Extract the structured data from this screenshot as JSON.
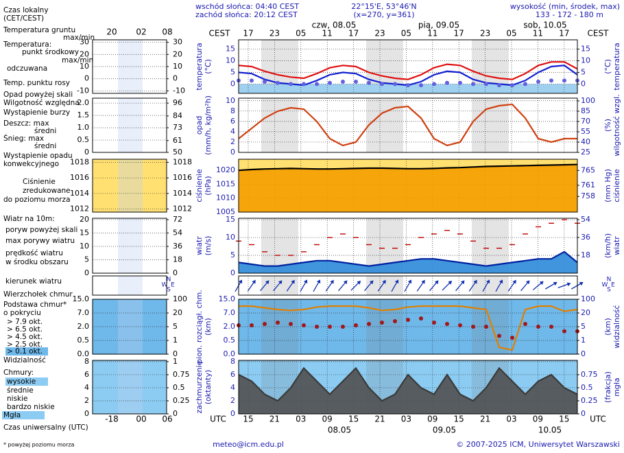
{
  "header": {
    "sunrise": "wschód słońca: 04:40 CEST",
    "sunset": "zachód słońca: 20:12 CEST",
    "coords": "22°15'E, 53°46'N",
    "gridpoint": "(x=270, y=361)",
    "elev_title": "wysokość (min, środek, max)",
    "elev": "133 - 172 - 180 m"
  },
  "dates_top": [
    "czw, 08.05",
    "pią, 09.05",
    "sob, 10.05"
  ],
  "tz_top": "CEST",
  "tz_bottom": "UTC",
  "hours_top": [
    "17",
    "23",
    "05",
    "11",
    "17",
    "23",
    "05",
    "11",
    "17",
    "23",
    "05",
    "11",
    "17"
  ],
  "hours_bottom": [
    "15",
    "21",
    "03",
    "09",
    "15",
    "21",
    "03",
    "09",
    "15",
    "21",
    "03",
    "09",
    "15"
  ],
  "dates_bottom": [
    "08.05",
    "09.05",
    "10.05"
  ],
  "compass": [
    "N",
    "W",
    "E",
    "S"
  ],
  "legend_hours_top": [
    "20",
    "02",
    "08"
  ],
  "legend_hours_bottom": [
    "-18",
    "00",
    "06"
  ],
  "legend": [
    "Czas lokalny",
    "(CET/CEST)",
    "Temperatura gruntu",
    "max/min",
    "Temperatura:",
    "punkt środkowy",
    "max/min",
    "odczuwana",
    "Temp. punktu rosy",
    "Opad powyżej skali",
    "Wilgotność względna",
    "Wystąpienie burzy",
    "Deszcz: max",
    "średni",
    "Śnieg: max",
    "średni",
    "Wystąpienie opadu",
    "konwekcyjnego",
    "Ciśnienie",
    "zredukowane",
    "do poziomu morza",
    "Wiatr na 10m:",
    "poryw powyżej skali",
    "max porywy wiatru",
    "prędkość wiatru",
    "w środku obszaru",
    "kierunek wiatru",
    "Wierzchołek chmur",
    "Podstawa chmur*",
    "o pokryciu",
    "> 7.9 okt.",
    "> 6.5 okt.",
    "> 4.5 okt.",
    "> 2.5 okt.",
    "> 0.1 okt.",
    "Widzialność",
    "Chmury:",
    "wysokie",
    "średnie",
    "niskie",
    "bardzo niskie",
    "Mgła",
    "Czas uniwersalny (UTC)"
  ],
  "legend_axes": [
    {
      "ylim": [
        -12,
        32
      ],
      "yticks": [
        -10,
        0,
        10,
        20,
        30
      ],
      "y2lim": [
        -12,
        32
      ],
      "y2ticks": [
        -10,
        0,
        10,
        20,
        30
      ]
    },
    {
      "ylim": [
        0,
        2.2
      ],
      "yticks": [
        0,
        {
          "value": 0.5,
          "label": "0.5"
        },
        {
          "value": 1,
          "label": "1.0"
        },
        {
          "value": 1.5,
          "label": "1.5"
        },
        {
          "value": 2,
          "label": "2.0"
        }
      ],
      "y2lim": [
        50,
        100.6
      ],
      "y2ticks": [
        50,
        61,
        73,
        84,
        96
      ]
    },
    {
      "ylim": [
        1011.6,
        1018.4
      ],
      "yticks": [
        1012,
        1014,
        1016,
        1018
      ],
      "y2lim": [
        1011.6,
        1018.4
      ],
      "y2ticks": [
        1012,
        1014,
        1016,
        1018
      ]
    },
    {
      "ylim": [
        0,
        20.5
      ],
      "yticks": [
        0,
        5,
        10,
        15,
        20
      ],
      "y2lim": [
        0,
        73.8
      ],
      "y2ticks": [
        0,
        18,
        36,
        54,
        72
      ]
    },
    {
      "yscale": "tick-spaced",
      "ylim": [
        0,
        15
      ],
      "yticks": [
        {
          "value": 0,
          "label": "0.0"
        },
        0.5,
        {
          "value": 2,
          "label": "2.0"
        },
        {
          "value": 7,
          "label": "7.0"
        },
        {
          "value": 15,
          "label": "15.0"
        }
      ],
      "y2lim": [
        0,
        100
      ],
      "y2ticks": [
        0,
        1,
        5,
        20,
        100
      ]
    },
    {
      "ylim": [
        0,
        8.2
      ],
      "yticks": [
        0,
        2,
        4,
        6,
        8
      ],
      "y2lim": [
        0,
        1.025
      ],
      "y2ticks": [
        0,
        0.25,
        0.5,
        0.75,
        1
      ]
    }
  ],
  "footer": {
    "email": "meteo@icm.edu.pl",
    "copyright": "© 2007-2025 ICM, Uniwersytet Warszawski",
    "note": "* powyżej poziomu morza"
  },
  "chart_data": [
    {
      "type": "line",
      "ylabel": [
        "temperatura",
        "(°C)"
      ],
      "y2label": [
        "(°C)",
        "temperatura"
      ],
      "ylim": [
        -4,
        19
      ],
      "yticks": [
        0,
        5,
        10,
        15
      ],
      "y2lim": [
        -4,
        19
      ],
      "y2ticks": [
        0,
        5,
        10,
        15
      ],
      "grid": true,
      "series": [
        {
          "color": "#e01010",
          "values": [
            8,
            7.5,
            5.5,
            4,
            3,
            2.5,
            4.5,
            7,
            8,
            7.5,
            5,
            3.5,
            2.5,
            2,
            4,
            7,
            8.5,
            8,
            5.5,
            3.5,
            2.5,
            2,
            4.5,
            8,
            9.5,
            9.5,
            6.5
          ]
        },
        {
          "color": "#1020d0",
          "values": [
            5,
            4.5,
            2,
            0.5,
            0,
            -0.5,
            1.5,
            4,
            5,
            4.5,
            2,
            0.5,
            0,
            -0.5,
            1,
            4,
            5.5,
            5,
            2,
            0.5,
            0,
            -0.5,
            1.5,
            5,
            7.5,
            8,
            4
          ]
        },
        {
          "color": "#6060e0",
          "style": "dots",
          "values": [
            1.5,
            1.5,
            1,
            0.5,
            0,
            0,
            0,
            0.5,
            1,
            1,
            0.5,
            0,
            0,
            -0.5,
            -0.5,
            0,
            0.5,
            0.5,
            0,
            0,
            -0.5,
            -0.5,
            0,
            1,
            1.5,
            1.5,
            1.5
          ]
        }
      ]
    },
    {
      "type": "line",
      "ylabel": [
        "opad",
        "(mm/h, kg/m²h)"
      ],
      "y2label": [
        "(%)",
        "wilgotność wzgl."
      ],
      "ylim": [
        0,
        10.5
      ],
      "yticks": [
        0,
        2,
        4,
        6,
        8,
        10
      ],
      "y2lim": [
        25,
        104
      ],
      "y2ticks": [
        25,
        40,
        55,
        70,
        85,
        100
      ],
      "grid": true,
      "series": [
        {
          "color": "#d04010",
          "axis": "y2",
          "values": [
            45,
            60,
            75,
            85,
            90,
            88,
            70,
            45,
            35,
            40,
            65,
            82,
            90,
            92,
            75,
            45,
            35,
            40,
            70,
            88,
            93,
            95,
            75,
            45,
            40,
            45,
            45
          ]
        }
      ]
    },
    {
      "type": "area",
      "ylabel": [
        "ciśnienie",
        "(hPa)"
      ],
      "y2label": [
        "(mm Hg)",
        "ciśnienie"
      ],
      "ylim": [
        1005,
        1024
      ],
      "yticks": [
        1005,
        1010,
        1015,
        1020
      ],
      "y2lim": [
        753.8,
        768
      ],
      "y2ticks": [
        758,
        761,
        765
      ],
      "grid": true,
      "series": [
        {
          "color": "#000000",
          "fill": "#f5a000",
          "values": [
            1020,
            1020.3,
            1020.5,
            1020.6,
            1020.7,
            1020.6,
            1020.5,
            1020.5,
            1020.6,
            1020.7,
            1020.8,
            1020.8,
            1020.7,
            1020.6,
            1020.6,
            1020.7,
            1020.9,
            1021,
            1021.2,
            1021.4,
            1021.5,
            1021.6,
            1021.7,
            1021.8,
            1021.9,
            1022,
            1022.1
          ]
        }
      ]
    },
    {
      "type": "area",
      "ylabel": [
        "wiatr",
        "(m/s)"
      ],
      "y2label": [
        "(km/h)",
        "wiatr"
      ],
      "ylim": [
        0,
        15.4
      ],
      "yticks": [
        0,
        5,
        10,
        15
      ],
      "y2lim": [
        0,
        55.4
      ],
      "y2ticks": [
        18,
        36,
        54
      ],
      "grid": true,
      "series": [
        {
          "color": "#0020a0",
          "fill": "#2c8ad8",
          "values": [
            3,
            2.5,
            2,
            2,
            2.5,
            3,
            3.5,
            3.5,
            3,
            2.5,
            2,
            2.5,
            3,
            3.5,
            4,
            4,
            3.5,
            3,
            2.5,
            2,
            2.5,
            3,
            3.5,
            4,
            4,
            6,
            3
          ]
        },
        {
          "color": "#c00000",
          "style": "dash",
          "values": [
            9,
            8,
            6,
            5,
            5,
            6,
            8,
            10,
            11,
            10,
            8,
            7,
            7,
            8,
            10,
            11,
            12,
            11,
            9,
            7,
            7,
            8,
            11,
            13,
            14,
            15,
            14
          ]
        }
      ]
    },
    {
      "type": "arrows",
      "series": [
        {
          "color": "#1030b0",
          "values": [
            30,
            35,
            40,
            40,
            35,
            30,
            30,
            35,
            40,
            45,
            40,
            35,
            30,
            30,
            35,
            40,
            45,
            40,
            35,
            30,
            30,
            35,
            40,
            50,
            60,
            70,
            60
          ]
        }
      ]
    },
    {
      "type": "line",
      "ylabel": [
        "pion. rozciągł. chm.",
        "(km)"
      ],
      "y2label": [
        "(km)",
        "widzialność"
      ],
      "yscale": "tick-spaced",
      "ylim": [
        0,
        15
      ],
      "yticks": [
        {
          "value": 0,
          "label": "0.0"
        },
        0.5,
        {
          "value": 2,
          "label": "2.0"
        },
        {
          "value": 7,
          "label": "7.0"
        },
        {
          "value": 15,
          "label": "15.0"
        }
      ],
      "y2lim": [
        0,
        100
      ],
      "y2ticks": [
        0,
        1,
        5,
        20,
        100
      ],
      "grid": true,
      "series": [
        {
          "color": "#a01818",
          "style": "dots",
          "values": [
            2.5,
            2.5,
            3,
            3.5,
            3,
            2.5,
            2,
            2,
            2,
            2.5,
            3,
            3.5,
            4,
            4.5,
            5,
            3.5,
            3,
            2.5,
            2,
            2,
            1,
            0.8,
            3,
            2,
            2,
            1.5,
            1.5
          ]
        },
        {
          "color": "#e08000",
          "axis": "y2",
          "values": [
            60,
            60,
            50,
            40,
            35,
            40,
            55,
            60,
            60,
            60,
            50,
            35,
            40,
            55,
            60,
            60,
            60,
            60,
            50,
            40,
            0.5,
            0.3,
            40,
            60,
            60,
            30,
            40
          ]
        }
      ]
    },
    {
      "type": "area",
      "ylabel": [
        "zachmurzenie",
        "(oktanty)"
      ],
      "y2label": [
        "(frakcja)",
        "mgła"
      ],
      "ylim": [
        0,
        8.2
      ],
      "yticks": [
        0,
        2,
        4,
        6,
        8
      ],
      "y2lim": [
        0,
        1.025
      ],
      "y2ticks": [
        0,
        0.25,
        0.5,
        0.75
      ],
      "grid": true,
      "series": [
        {
          "color": "#3a3a3a",
          "fill": "#505050",
          "values": [
            6,
            5,
            3,
            2,
            4,
            7,
            5,
            3,
            5,
            7,
            4,
            2,
            3,
            6,
            4,
            3,
            6,
            3,
            2,
            4,
            7,
            5,
            3,
            5,
            6,
            4,
            3
          ]
        }
      ]
    }
  ]
}
